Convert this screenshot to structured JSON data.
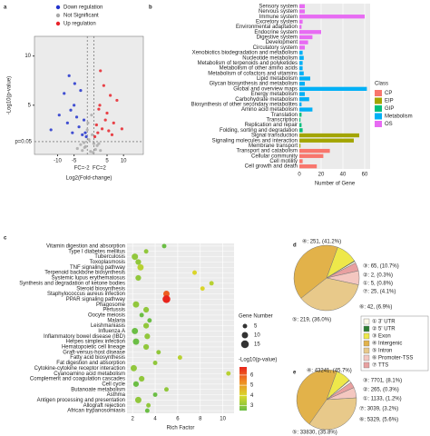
{
  "chart_data": [
    {
      "type": "scatter",
      "panel": "a",
      "xlabel": "Log2(Fold-change)",
      "ylabel": "-Log10(p-value)",
      "xlim": [
        -17,
        16
      ],
      "ylim": [
        0,
        12
      ],
      "xticks": [
        -10,
        -5,
        5,
        10
      ],
      "yticks": [
        5,
        10
      ],
      "fc_lines": [
        {
          "value": -1,
          "label": "FC=-2"
        },
        {
          "value": 1,
          "label": "FC=2"
        }
      ],
      "p_line": {
        "value": 1.3,
        "label": "p=0.05"
      },
      "series": [
        {
          "name": "Down regulation",
          "color": "#2233cc",
          "x": [
            -12,
            -9.5,
            -8,
            -7,
            -6.5,
            -5.5,
            -5,
            -4.2,
            -3.5,
            -3,
            -2.5,
            -2,
            -1.6,
            -1.3,
            -6,
            -4.8
          ],
          "values": [
            2.5,
            4,
            6.2,
            3.2,
            8,
            2.2,
            5,
            3.8,
            2.8,
            6.5,
            2,
            3.5,
            2.2,
            1.8,
            4.5,
            7.2
          ]
        },
        {
          "name": "Not Significant",
          "color": "#aaaaaa",
          "x": [
            -4,
            -3,
            -2.5,
            -2,
            -1.5,
            -1,
            -0.5,
            0,
            0.5,
            1,
            1.5,
            2,
            2.5,
            3,
            -0.8,
            0.3,
            0.8,
            -1.8
          ],
          "values": [
            0.6,
            1,
            0.4,
            1.2,
            0.8,
            2.5,
            1.5,
            0.3,
            2,
            1.1,
            0.5,
            0.9,
            1.1,
            0.4,
            3.2,
            4,
            0.2,
            0.7
          ]
        },
        {
          "name": "Up regulation",
          "color": "#e8232a",
          "x": [
            1.3,
            1.8,
            2.2,
            2.8,
            3.5,
            4,
            4.5,
            5,
            5.5,
            6,
            7,
            8,
            9.5,
            3,
            2.5,
            6.5
          ],
          "values": [
            1.8,
            3,
            2.2,
            5,
            2.6,
            7,
            3.5,
            4.2,
            2.4,
            6,
            3.2,
            5.5,
            2.6,
            8.5,
            4.6,
            2
          ]
        }
      ]
    },
    {
      "type": "hbar",
      "panel": "b",
      "xlabel": "Number of Gene",
      "xlim": [
        0,
        65
      ],
      "xticks": [
        0,
        20,
        40,
        60
      ],
      "grid": true,
      "legend_title": "Class",
      "classes": [
        {
          "name": "CP",
          "color": "#f8766d"
        },
        {
          "name": "EIP",
          "color": "#a3a500"
        },
        {
          "name": "GIP",
          "color": "#00bf7d"
        },
        {
          "name": "Metabolism",
          "color": "#00b0f6"
        },
        {
          "name": "OS",
          "color": "#e76bf3"
        }
      ],
      "categories": [
        "Sensory system",
        "Nervous system",
        "Immune system",
        "Excretory system",
        "Environmental adaptation",
        "Endocrine system",
        "Digestive system",
        "Development",
        "Circulatory system",
        "Xenobiotics biodegradation and metabolism",
        "Nucleotide metabolism",
        "Metabolism of terpenoids and polyketides",
        "Metabolism of other amino acids",
        "Metabolism of cofactors and vitamins",
        "Lipid metabolism",
        "Glycan biosynthesis and metabolism",
        "Global and overview maps",
        "Energy metabolism",
        "Carbohydrate metabolism",
        "Biosynthesis of other secondary metabolites",
        "Amino acid metabolism",
        "Translation",
        "Transcription",
        "Replication and repair",
        "Folding, sorting and degradation",
        "Signal transduction",
        "Signaling molecules and interaction",
        "Membrane transport",
        "Transport and catabolism",
        "Cellular community",
        "Cell motility",
        "Cell growth and death"
      ],
      "values": [
        5,
        5,
        60,
        3,
        2,
        20,
        12,
        8,
        5,
        3,
        4,
        3,
        3,
        4,
        10,
        5,
        62,
        5,
        9,
        2,
        12,
        2,
        1,
        2,
        3,
        55,
        50,
        1,
        28,
        22,
        3,
        16
      ],
      "groups": [
        "OS",
        "OS",
        "OS",
        "OS",
        "OS",
        "OS",
        "OS",
        "OS",
        "OS",
        "Metabolism",
        "Metabolism",
        "Metabolism",
        "Metabolism",
        "Metabolism",
        "Metabolism",
        "Metabolism",
        "Metabolism",
        "Metabolism",
        "Metabolism",
        "Metabolism",
        "Metabolism",
        "GIP",
        "GIP",
        "GIP",
        "GIP",
        "EIP",
        "EIP",
        "EIP",
        "CP",
        "CP",
        "CP",
        "CP"
      ]
    },
    {
      "type": "bubble",
      "panel": "c",
      "xlabel": "Rich Factor",
      "xlim": [
        1.5,
        11
      ],
      "xticks": [
        2,
        4,
        6,
        8,
        10
      ],
      "grid": true,
      "size_title": "Gene Number",
      "size_ticks": [
        5,
        10,
        15
      ],
      "color_title": "-Log10(p-value)",
      "color_scale": {
        "lim": [
          2.5,
          6.8
        ],
        "ticks": [
          6,
          5,
          4,
          3
        ],
        "colors": [
          "#6bbe45",
          "#d9d92a",
          "#f08a24",
          "#e8241c"
        ]
      },
      "categories": [
        "Vitamin digestion and absorption",
        "Type I diabetes mellitus",
        "Tuberculosis",
        "Toxoplasmosis",
        "TNF signaling pathway",
        "Terpenoid backbone biosynthesis",
        "Systemic lupus erythematosus",
        "Synthesis and degradation of ketone bodies",
        "Steroid biosynthesis",
        "Staphylococcus aureus infection",
        "PPAR signaling pathway",
        "Phagosome",
        "Pertussis",
        "Oocyte meiosis",
        "Malaria",
        "Leishmaniasis",
        "Influenza A",
        "Inflammatory bowel disease (IBD)",
        "Herpes simplex infection",
        "Hematopoietic cell lineage",
        "Graft-versus-host disease",
        "Fatty acid biosynthesis",
        "Fat digestion and absorption",
        "Cytokine-cytokine receptor interaction",
        "Cyanoamino acid metabolism",
        "Complement and coagulation cascades",
        "Cell cycle",
        "Butanoate metabolism",
        "Asthma",
        "Antigen processing and presentation",
        "Allograft rejection",
        "African trypanosomiasis"
      ],
      "values": [
        4.8,
        3.2,
        2.2,
        2.5,
        2.7,
        7.5,
        2.5,
        9,
        8.2,
        5,
        5,
        2.3,
        3.2,
        2.8,
        3.5,
        3.2,
        2.2,
        3.3,
        2.3,
        3.2,
        4.3,
        6.2,
        4,
        2.1,
        10.5,
        2.8,
        2.3,
        5,
        4,
        2.5,
        3.4,
        3.3
      ],
      "gene_numbers": [
        5,
        5,
        10,
        8,
        10,
        5,
        8,
        5,
        5,
        10,
        15,
        10,
        8,
        5,
        5,
        8,
        10,
        8,
        10,
        8,
        5,
        5,
        5,
        10,
        5,
        8,
        8,
        5,
        5,
        10,
        5,
        5
      ],
      "log10_p": [
        2.5,
        3,
        3,
        3,
        3.5,
        4,
        3,
        3.5,
        4,
        6,
        7,
        3,
        3,
        2.5,
        2.5,
        3,
        2.5,
        3,
        2.5,
        3,
        3,
        3.5,
        3,
        3,
        3.5,
        3,
        2.5,
        3,
        2.5,
        3,
        3,
        2.5
      ]
    },
    {
      "type": "pie",
      "panel": "d",
      "values": [
        65,
        2,
        5,
        25,
        42,
        219,
        251
      ],
      "value_labels": [
        "③: 65, (10.7%)",
        "②: 2, (0.3%)",
        "①: 5, (0.8%)",
        "⑦: 25, (4.1%)",
        "⑥: 42, (6.9%)",
        "⑤: 219, (36.0%)",
        "④: 251, (41.2%)"
      ],
      "colors": [
        "#eee84a",
        "#2e7d32",
        "#fdf8e8",
        "#e8a0a0",
        "#f4c7c0",
        "#e8c98a",
        "#e2b24a"
      ],
      "legend": [
        {
          "label": "① 3' UTR",
          "color": "#fdf8e8"
        },
        {
          "label": "② 5' UTR",
          "color": "#2e7d32"
        },
        {
          "label": "③ Exon",
          "color": "#eee84a"
        },
        {
          "label": "④ Intergenic",
          "color": "#e2b24a"
        },
        {
          "label": "⑤ Intron",
          "color": "#e8c98a"
        },
        {
          "label": "⑥ Promoter-TSS",
          "color": "#f4c7c0"
        },
        {
          "label": "⑦ TTS",
          "color": "#e8a0a0"
        }
      ]
    },
    {
      "type": "pie",
      "panel": "e",
      "values": [
        7701,
        265,
        1133,
        3039,
        5329,
        33830,
        43241
      ],
      "value_labels": [
        "③: 7701, (8.1%)",
        "②: 265, (0.3%)",
        "①: 1133, (1.2%)",
        "⑦: 3039, (3.2%)",
        "⑥: 5329, (5.6%)",
        "⑤: 33830, (35.8%)",
        "④: 43241, (45.7%)"
      ],
      "colors": [
        "#eee84a",
        "#2e7d32",
        "#fdf8e8",
        "#e8a0a0",
        "#f4c7c0",
        "#e8c98a",
        "#e2b24a"
      ]
    }
  ]
}
